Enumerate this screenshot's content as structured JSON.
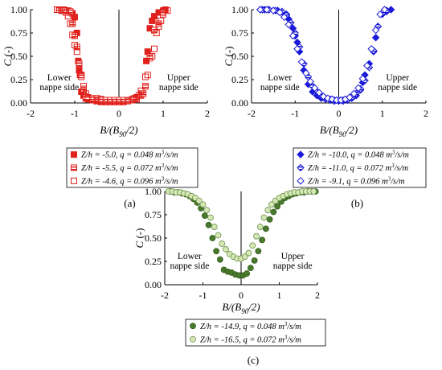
{
  "chart_data": [
    {
      "id": "a",
      "type": "scatter",
      "panel_label": "(a)",
      "ylabel": "C (-)",
      "xlabel_parts": [
        "B/(B",
        "90",
        "/2)"
      ],
      "xlim": [
        -2,
        2
      ],
      "ylim": [
        0,
        1
      ],
      "xticks": [
        "-2",
        "-1",
        "0",
        "1",
        "2"
      ],
      "yticks": [
        "0.00",
        "0.25",
        "0.50",
        "0.75",
        "1.00"
      ],
      "annotations": {
        "left": [
          "Lower",
          "nappe side"
        ],
        "right": [
          "Upper",
          "nappe side"
        ]
      },
      "color": "#e0201c",
      "series": [
        {
          "marker": "square-filled",
          "legend": {
            "z": "-5.0",
            "q": "0.048"
          },
          "x": [
            -1.3,
            -1.25,
            -1.2,
            -1.15,
            -1.05,
            -1.0,
            -0.95,
            -0.92,
            -0.9,
            -0.88,
            -0.85,
            -0.8,
            -0.75,
            -0.7,
            -0.6,
            -0.5,
            -0.4,
            -0.3,
            -0.2,
            -0.1,
            0.0,
            0.1,
            0.2,
            0.3,
            0.4,
            0.5,
            0.6,
            0.62,
            0.65,
            0.7,
            0.75,
            0.8,
            0.9,
            1.0,
            1.05
          ],
          "y": [
            1.0,
            1.0,
            0.99,
            0.99,
            0.96,
            0.92,
            0.75,
            0.45,
            0.35,
            0.3,
            0.12,
            0.08,
            0.05,
            0.04,
            0.03,
            0.02,
            0.02,
            0.02,
            0.02,
            0.02,
            0.02,
            0.02,
            0.03,
            0.04,
            0.06,
            0.1,
            0.18,
            0.45,
            0.55,
            0.8,
            0.88,
            0.93,
            0.97,
            0.99,
            1.0
          ]
        },
        {
          "marker": "square-hatched",
          "legend": {
            "z": "-5.5",
            "q": "0.072"
          },
          "x": [
            -1.35,
            -1.3,
            -1.25,
            -1.1,
            -1.05,
            -1.0,
            -0.95,
            -0.9,
            -0.85,
            -0.8,
            -0.75,
            -0.7,
            -0.6,
            -0.5,
            -0.4,
            -0.3,
            -0.2,
            -0.1,
            0.0,
            0.1,
            0.2,
            0.3,
            0.4,
            0.5,
            0.55,
            0.6,
            0.7,
            0.8,
            0.9,
            1.0
          ],
          "y": [
            1.0,
            0.99,
            0.99,
            0.98,
            0.85,
            0.72,
            0.6,
            0.42,
            0.3,
            0.15,
            0.07,
            0.06,
            0.05,
            0.05,
            0.04,
            0.03,
            0.03,
            0.03,
            0.03,
            0.03,
            0.03,
            0.03,
            0.04,
            0.08,
            0.1,
            0.18,
            0.5,
            0.78,
            0.85,
            0.97
          ]
        },
        {
          "marker": "square-open",
          "legend": {
            "z": "-4.6",
            "q": "0.096"
          },
          "x": [
            -1.4,
            -1.35,
            -1.3,
            -1.25,
            -1.2,
            -1.15,
            -1.1,
            -1.05,
            -1.0,
            -0.95,
            -0.9,
            -0.85,
            -0.8,
            -0.75,
            -0.7,
            -0.6,
            -0.5,
            -0.4,
            -0.3,
            -0.2,
            -0.1,
            0.0,
            0.1,
            0.2,
            0.3,
            0.35,
            0.4,
            0.45,
            0.5,
            0.6,
            0.65,
            0.7,
            0.75,
            0.8,
            0.85,
            0.9,
            0.95,
            1.0,
            1.1
          ],
          "y": [
            1.0,
            1.0,
            0.99,
            0.99,
            0.97,
            0.93,
            0.85,
            0.73,
            0.62,
            0.55,
            0.4,
            0.28,
            0.18,
            0.1,
            0.05,
            0.03,
            0.02,
            0.01,
            0.01,
            0.01,
            0.01,
            0.01,
            0.01,
            0.02,
            0.03,
            0.05,
            0.06,
            0.08,
            0.13,
            0.28,
            0.3,
            0.48,
            0.5,
            0.58,
            0.75,
            0.82,
            0.88,
            0.95,
            0.99
          ]
        }
      ]
    },
    {
      "id": "b",
      "type": "scatter",
      "panel_label": "(b)",
      "ylabel": "C (-)",
      "xlabel_parts": [
        "B/(B",
        "90",
        "/2)"
      ],
      "xlim": [
        -2,
        2
      ],
      "ylim": [
        0,
        1
      ],
      "xticks": [
        "-2",
        "-1",
        "0",
        "1",
        "2"
      ],
      "yticks": [
        "0.00",
        "0.25",
        "0.50",
        "0.75",
        "1.00"
      ],
      "annotations": {
        "left": [
          "Lower",
          "nappe side"
        ],
        "right": [
          "Upper",
          "nappe side"
        ]
      },
      "color": "#1a1ad8",
      "series": [
        {
          "marker": "diamond-filled",
          "legend": {
            "z": "-10.0",
            "q": "0.048"
          },
          "x": [
            -1.8,
            -1.7,
            -1.6,
            -1.5,
            -1.4,
            -1.3,
            -1.2,
            -1.15,
            -1.1,
            -1.05,
            -1.0,
            -0.95,
            -0.9,
            -0.8,
            -0.7,
            -0.6,
            -0.5,
            -0.4,
            -0.3,
            -0.2,
            -0.1,
            0.0,
            0.1,
            0.2,
            0.3,
            0.4,
            0.5,
            0.55,
            0.6,
            0.7,
            0.8,
            0.85,
            0.9,
            1.0,
            1.1,
            1.2
          ],
          "y": [
            1.0,
            1.0,
            1.0,
            0.99,
            0.99,
            0.98,
            0.95,
            0.9,
            0.86,
            0.8,
            0.72,
            0.65,
            0.55,
            0.35,
            0.2,
            0.12,
            0.08,
            0.05,
            0.04,
            0.03,
            0.02,
            0.02,
            0.02,
            0.03,
            0.05,
            0.08,
            0.14,
            0.22,
            0.3,
            0.42,
            0.55,
            0.7,
            0.82,
            0.95,
            0.98,
            1.0
          ]
        },
        {
          "marker": "diamond-hatched",
          "legend": {
            "z": "-11.0",
            "q": "0.072"
          },
          "x": [
            -1.75,
            -1.6,
            -1.45,
            -1.3,
            -1.2,
            -1.1,
            -1.0,
            -0.9,
            -0.8,
            -0.7,
            -0.6,
            -0.5,
            -0.4,
            -0.3,
            -0.2,
            -0.1,
            0.0,
            0.1,
            0.2,
            0.3,
            0.4,
            0.5,
            0.6,
            0.7,
            0.8,
            0.9,
            1.0,
            1.1
          ],
          "y": [
            1.0,
            1.0,
            0.99,
            0.98,
            0.94,
            0.86,
            0.75,
            0.6,
            0.42,
            0.28,
            0.18,
            0.12,
            0.08,
            0.05,
            0.04,
            0.03,
            0.03,
            0.03,
            0.04,
            0.06,
            0.1,
            0.15,
            0.24,
            0.38,
            0.56,
            0.82,
            0.96,
            0.99
          ]
        },
        {
          "marker": "diamond-open",
          "legend": {
            "z": "-9.1",
            "q": "0.096"
          },
          "x": [
            -1.8,
            -1.65,
            -1.5,
            -1.35,
            -1.25,
            -1.15,
            -1.05,
            -0.95,
            -0.85,
            -0.75,
            -0.65,
            -0.55,
            -0.45,
            -0.35,
            -0.25,
            -0.15,
            -0.05,
            0.05,
            0.15,
            0.25,
            0.35,
            0.45,
            0.55,
            0.65,
            0.75,
            0.85,
            0.95,
            1.05
          ],
          "y": [
            1.0,
            1.0,
            0.99,
            0.97,
            0.92,
            0.84,
            0.72,
            0.58,
            0.44,
            0.32,
            0.23,
            0.16,
            0.11,
            0.07,
            0.05,
            0.04,
            0.03,
            0.03,
            0.04,
            0.06,
            0.1,
            0.16,
            0.26,
            0.4,
            0.58,
            0.78,
            0.95,
            1.0
          ]
        }
      ]
    },
    {
      "id": "c",
      "type": "scatter",
      "panel_label": "(c)",
      "ylabel": "C (-)",
      "xlabel_parts": [
        "B/(B",
        "90",
        "/2)"
      ],
      "xlim": [
        -2,
        2
      ],
      "ylim": [
        0,
        1
      ],
      "xticks": [
        "-2",
        "-1",
        "0",
        "1",
        "2"
      ],
      "yticks": [
        "0.00",
        "0.25",
        "0.50",
        "0.75",
        "1.00"
      ],
      "annotations": {
        "left": [
          "Lower",
          "nappe side"
        ],
        "right": [
          "Upper",
          "nappe side"
        ]
      },
      "color": "#4a7a2c",
      "light_color": "#d5e8b4",
      "series": [
        {
          "marker": "circle-filled",
          "legend": {
            "z": "-14.9",
            "q": "0.048"
          },
          "x": [
            -1.85,
            -1.75,
            -1.65,
            -1.55,
            -1.45,
            -1.35,
            -1.25,
            -1.15,
            -1.05,
            -0.95,
            -0.85,
            -0.75,
            -0.65,
            -0.55,
            -0.45,
            -0.35,
            -0.25,
            -0.15,
            -0.05,
            0.05,
            0.15,
            0.25,
            0.35,
            0.45,
            0.55,
            0.65,
            0.75,
            0.85,
            0.95,
            1.05,
            1.15,
            1.25,
            1.35,
            1.45,
            1.55,
            1.65,
            1.75,
            1.85,
            1.95
          ],
          "y": [
            1.0,
            0.99,
            0.99,
            0.98,
            0.97,
            0.95,
            0.92,
            0.88,
            0.82,
            0.74,
            0.64,
            0.5,
            0.36,
            0.27,
            0.16,
            0.14,
            0.13,
            0.11,
            0.1,
            0.1,
            0.12,
            0.18,
            0.26,
            0.36,
            0.48,
            0.6,
            0.7,
            0.78,
            0.84,
            0.89,
            0.93,
            0.95,
            0.97,
            0.98,
            0.99,
            0.99,
            1.0,
            1.0,
            1.0
          ]
        },
        {
          "marker": "circle-light",
          "legend": {
            "z": "-16.5",
            "q": "0.072"
          },
          "x": [
            -1.9,
            -1.8,
            -1.7,
            -1.6,
            -1.5,
            -1.4,
            -1.3,
            -1.2,
            -1.1,
            -1.0,
            -0.9,
            -0.8,
            -0.7,
            -0.6,
            -0.5,
            -0.4,
            -0.3,
            -0.2,
            -0.1,
            0.0,
            0.1,
            0.2,
            0.3,
            0.4,
            0.5,
            0.6,
            0.7,
            0.8,
            0.9,
            1.0,
            1.1,
            1.2,
            1.3,
            1.4,
            1.5,
            1.6,
            1.7,
            1.8,
            1.9
          ],
          "y": [
            1.0,
            1.0,
            0.99,
            0.99,
            0.98,
            0.97,
            0.95,
            0.93,
            0.9,
            0.86,
            0.8,
            0.72,
            0.62,
            0.53,
            0.44,
            0.38,
            0.33,
            0.3,
            0.28,
            0.28,
            0.3,
            0.34,
            0.42,
            0.52,
            0.62,
            0.72,
            0.8,
            0.86,
            0.9,
            0.93,
            0.95,
            0.97,
            0.98,
            0.99,
            0.99,
            1.0,
            1.0,
            1.0,
            1.0
          ]
        }
      ]
    }
  ]
}
